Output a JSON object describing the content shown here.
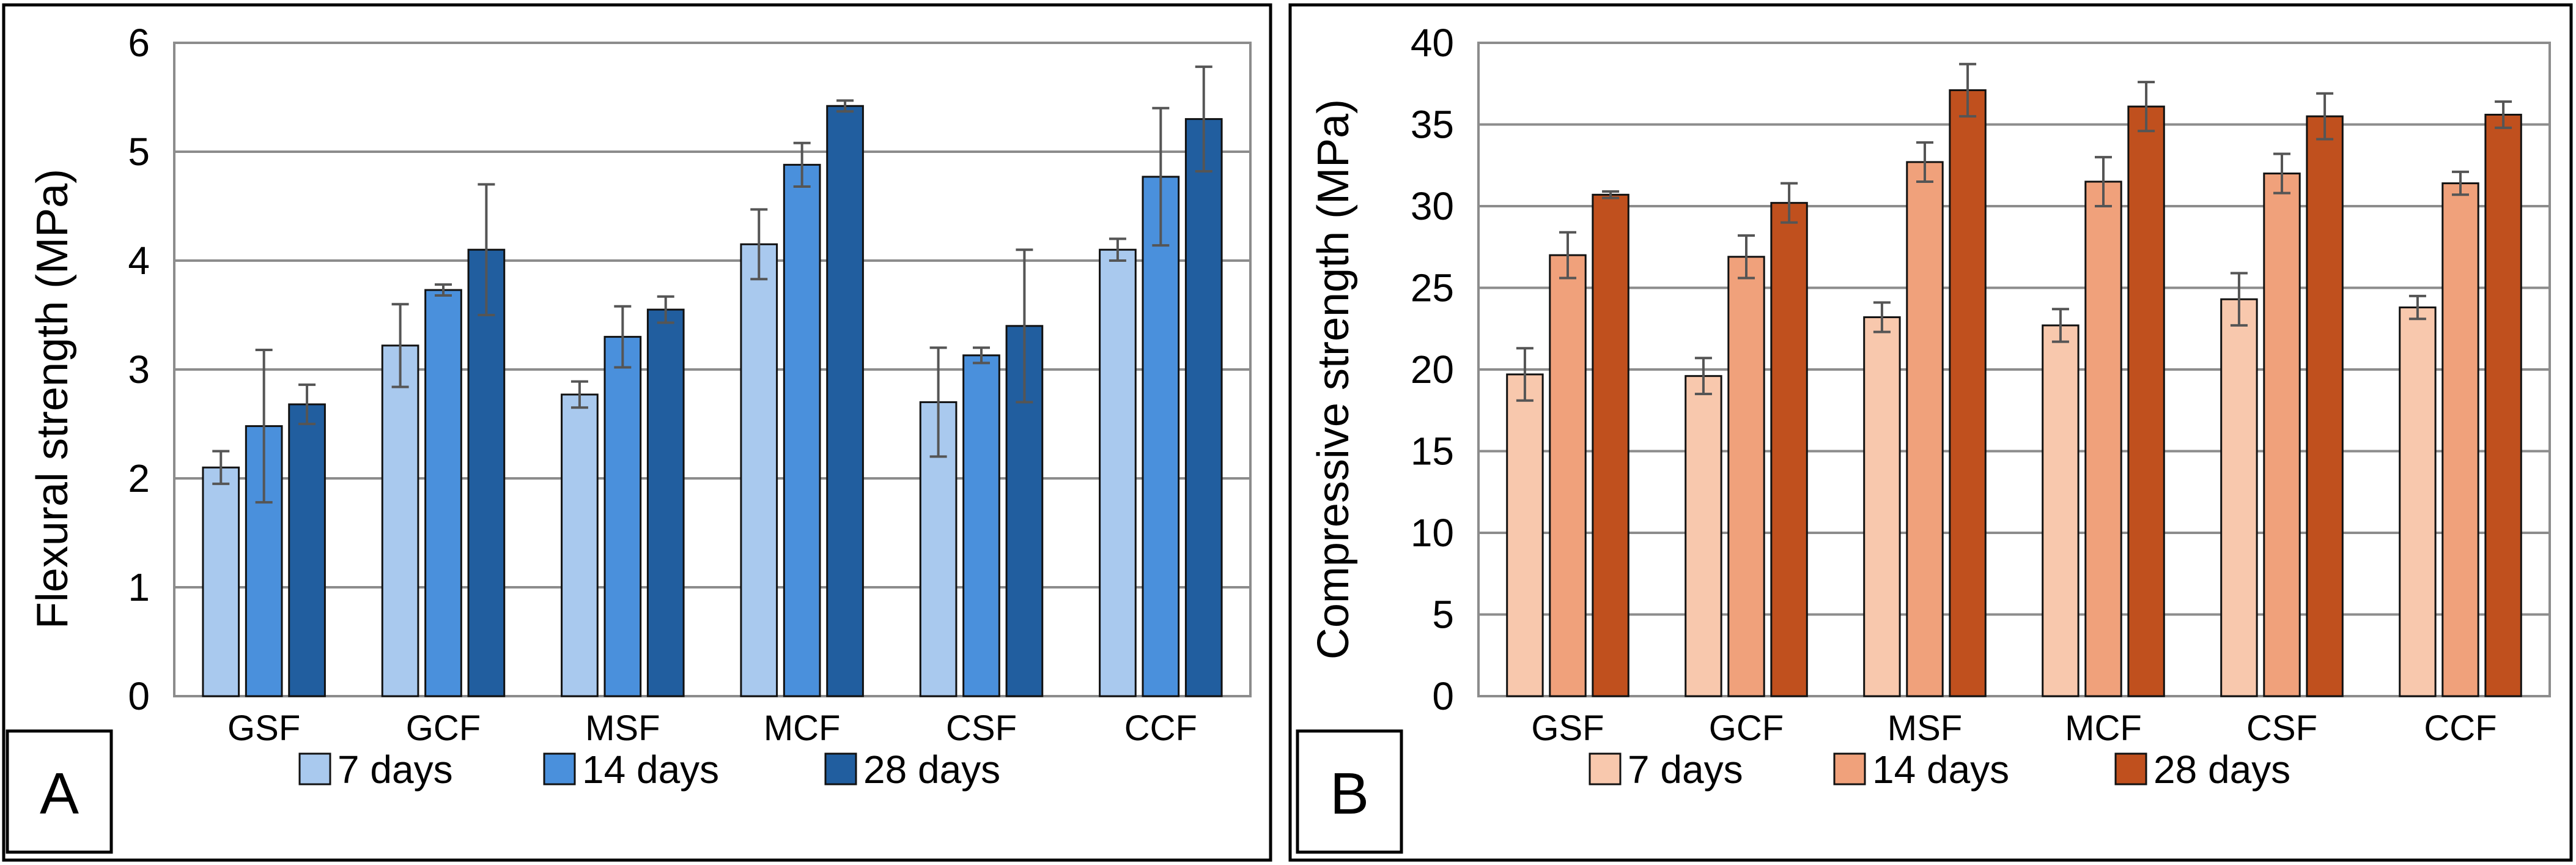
{
  "chart_data": [
    {
      "type": "bar",
      "panel_label": "A",
      "ylabel": "Flexural strength (MPa)",
      "categories": [
        "GSF",
        "GCF",
        "MSF",
        "MCF",
        "CSF",
        "CCF"
      ],
      "ylim": [
        0,
        6
      ],
      "yticks": [
        0,
        1,
        2,
        3,
        4,
        5,
        6
      ],
      "grid": true,
      "legend_position": "bottom",
      "series": [
        {
          "name": "7 days",
          "color": "#a9c9ee",
          "values": [
            2.1,
            3.22,
            2.77,
            4.15,
            2.7,
            4.1
          ],
          "errors": [
            0.15,
            0.38,
            0.12,
            0.32,
            0.5,
            0.1
          ]
        },
        {
          "name": "14 days",
          "color": "#4a90dc",
          "values": [
            2.48,
            3.73,
            3.3,
            4.88,
            3.13,
            4.77
          ],
          "errors": [
            0.7,
            0.05,
            0.28,
            0.2,
            0.07,
            0.63
          ]
        },
        {
          "name": "28 days",
          "color": "#215e9f",
          "values": [
            2.68,
            4.1,
            3.55,
            5.42,
            3.4,
            5.3
          ],
          "errors": [
            0.18,
            0.6,
            0.12,
            0.05,
            0.7,
            0.48
          ]
        }
      ]
    },
    {
      "type": "bar",
      "panel_label": "B",
      "ylabel": "Compressive strength (MPa)",
      "categories": [
        "GSF",
        "GCF",
        "MSF",
        "MCF",
        "CSF",
        "CCF"
      ],
      "ylim": [
        0,
        40
      ],
      "yticks": [
        0,
        5,
        10,
        15,
        20,
        25,
        30,
        35,
        40
      ],
      "grid": true,
      "legend_position": "bottom",
      "series": [
        {
          "name": "7 days",
          "color": "#f8c8ad",
          "values": [
            19.7,
            19.6,
            23.2,
            22.7,
            24.3,
            23.8
          ],
          "errors": [
            1.6,
            1.1,
            0.9,
            1.0,
            1.6,
            0.7
          ]
        },
        {
          "name": "14 days",
          "color": "#f0a17b",
          "values": [
            27.0,
            26.9,
            32.7,
            31.5,
            32.0,
            31.4
          ],
          "errors": [
            1.4,
            1.3,
            1.2,
            1.5,
            1.2,
            0.7
          ]
        },
        {
          "name": "28 days",
          "color": "#c0501e",
          "values": [
            30.7,
            30.2,
            37.1,
            36.1,
            35.5,
            35.6
          ],
          "errors": [
            0.2,
            1.2,
            1.6,
            1.5,
            1.4,
            0.8
          ]
        }
      ]
    }
  ]
}
